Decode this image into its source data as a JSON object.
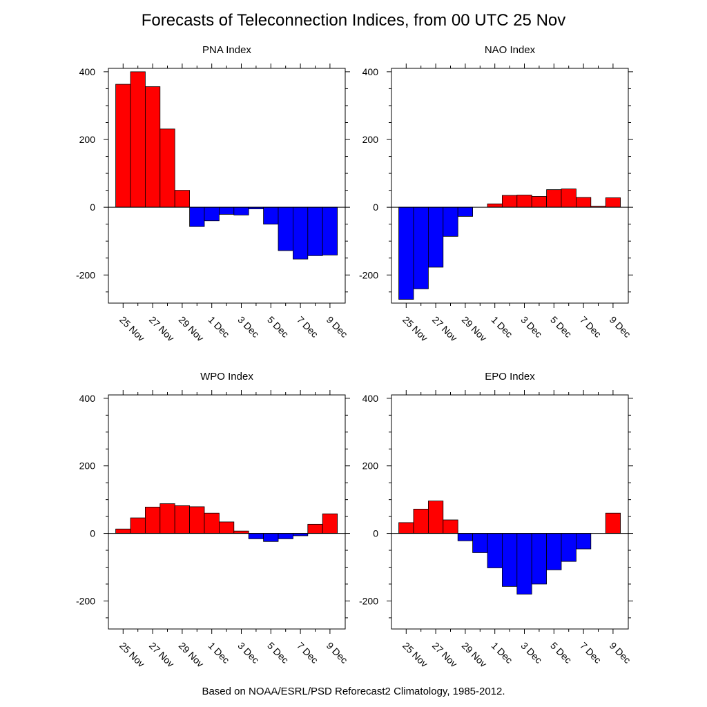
{
  "title": "Forecasts of Teleconnection Indices, from 00 UTC 25 Nov",
  "footer": "Based on NOAA/ESRL/PSD Reforecast2 Climatology, 1985-2012.",
  "colors": {
    "positive": "#ff0000",
    "negative": "#0000ff"
  },
  "chart_data": [
    {
      "type": "bar",
      "title": "PNA Index",
      "xlabel": "",
      "ylabel": "",
      "x_tick_labels": [
        "25 Nov",
        "27 Nov",
        "29 Nov",
        "1 Dec",
        "3 Dec",
        "5 Dec",
        "7 Dec",
        "9 Dec"
      ],
      "categories": [
        "25 Nov",
        "26 Nov",
        "27 Nov",
        "28 Nov",
        "29 Nov",
        "30 Nov",
        "1 Dec",
        "2 Dec",
        "3 Dec",
        "4 Dec",
        "5 Dec",
        "6 Dec",
        "7 Dec",
        "8 Dec",
        "9 Dec"
      ],
      "values": [
        363,
        400,
        356,
        231,
        50,
        -57,
        -40,
        -21,
        -23,
        -5,
        -50,
        -128,
        -153,
        -143,
        -141
      ],
      "y_tick_labels": [
        "400",
        "200",
        "0",
        "-200"
      ],
      "ylim": [
        -283,
        410
      ],
      "grid": false
    },
    {
      "type": "bar",
      "title": "NAO Index",
      "xlabel": "",
      "ylabel": "",
      "x_tick_labels": [
        "25 Nov",
        "27 Nov",
        "29 Nov",
        "1 Dec",
        "3 Dec",
        "5 Dec",
        "7 Dec",
        "9 Dec"
      ],
      "categories": [
        "25 Nov",
        "26 Nov",
        "27 Nov",
        "28 Nov",
        "29 Nov",
        "30 Nov",
        "1 Dec",
        "2 Dec",
        "3 Dec",
        "4 Dec",
        "5 Dec",
        "6 Dec",
        "7 Dec",
        "8 Dec",
        "9 Dec"
      ],
      "values": [
        -272,
        -241,
        -177,
        -86,
        -27,
        0,
        10,
        35,
        36,
        32,
        52,
        54,
        29,
        3,
        28
      ],
      "y_tick_labels": [
        "400",
        "200",
        "0",
        "-200"
      ],
      "ylim": [
        -283,
        410
      ],
      "grid": false
    },
    {
      "type": "bar",
      "title": "WPO Index",
      "xlabel": "",
      "ylabel": "",
      "x_tick_labels": [
        "25 Nov",
        "27 Nov",
        "29 Nov",
        "1 Dec",
        "3 Dec",
        "5 Dec",
        "7 Dec",
        "9 Dec"
      ],
      "categories": [
        "25 Nov",
        "26 Nov",
        "27 Nov",
        "28 Nov",
        "29 Nov",
        "30 Nov",
        "1 Dec",
        "2 Dec",
        "3 Dec",
        "4 Dec",
        "5 Dec",
        "6 Dec",
        "7 Dec",
        "8 Dec",
        "9 Dec"
      ],
      "values": [
        13,
        46,
        78,
        88,
        82,
        79,
        60,
        34,
        7,
        -16,
        -24,
        -16,
        -7,
        27,
        58
      ],
      "y_tick_labels": [
        "400",
        "200",
        "0",
        "-200"
      ],
      "ylim": [
        -283,
        410
      ],
      "grid": false
    },
    {
      "type": "bar",
      "title": "EPO Index",
      "xlabel": "",
      "ylabel": "",
      "x_tick_labels": [
        "25 Nov",
        "27 Nov",
        "29 Nov",
        "1 Dec",
        "3 Dec",
        "5 Dec",
        "7 Dec",
        "9 Dec"
      ],
      "categories": [
        "25 Nov",
        "26 Nov",
        "27 Nov",
        "28 Nov",
        "29 Nov",
        "30 Nov",
        "1 Dec",
        "2 Dec",
        "3 Dec",
        "4 Dec",
        "5 Dec",
        "6 Dec",
        "7 Dec",
        "8 Dec",
        "9 Dec"
      ],
      "values": [
        32,
        72,
        96,
        40,
        -22,
        -57,
        -102,
        -157,
        -180,
        -150,
        -108,
        -83,
        -46,
        0,
        60
      ],
      "y_tick_labels": [
        "400",
        "200",
        "0",
        "-200"
      ],
      "ylim": [
        -283,
        410
      ],
      "grid": false
    }
  ]
}
